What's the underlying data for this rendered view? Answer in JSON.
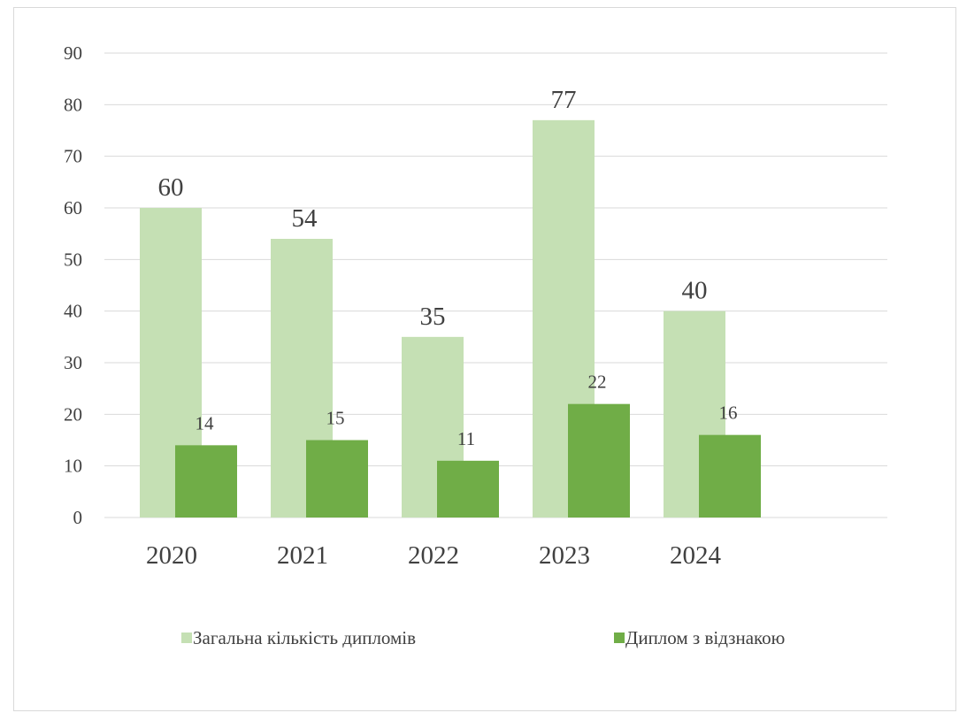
{
  "chart_data": {
    "type": "bar",
    "categories": [
      "2020",
      "2021",
      "2022",
      "2023",
      "2024"
    ],
    "series": [
      {
        "name": "Загальна кількість дипломів",
        "values": [
          60,
          54,
          35,
          77,
          40
        ],
        "color": "#c5e0b4"
      },
      {
        "name": "Диплом з відзнакою",
        "values": [
          14,
          15,
          11,
          22,
          16
        ],
        "color": "#70ad47"
      }
    ],
    "ylim": [
      0,
      90
    ],
    "yticks": [
      0,
      10,
      20,
      30,
      40,
      50,
      60,
      70,
      80,
      90
    ],
    "grid": true,
    "gridline_color": "#d9d9d9",
    "legend_position": "bottom",
    "title": "",
    "xlabel": "",
    "ylabel": ""
  }
}
